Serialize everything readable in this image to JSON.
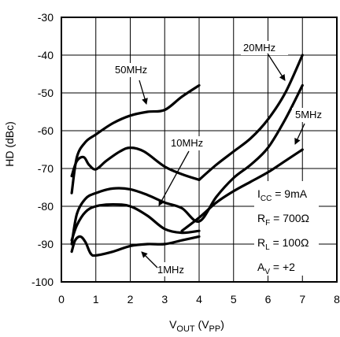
{
  "chart_data": {
    "type": "line",
    "title": "",
    "xlabel": {
      "main": "V",
      "sub1": "OUT",
      "mid": " (V",
      "sub2": "PP",
      "end": ")"
    },
    "ylabel": "HD (dBc)",
    "xlim": [
      0,
      8
    ],
    "ylim": [
      -100,
      -30
    ],
    "x_ticks": [
      0,
      1,
      2,
      3,
      4,
      5,
      6,
      7,
      8
    ],
    "y_ticks": [
      -100,
      -90,
      -80,
      -70,
      -60,
      -50,
      -40,
      -30
    ],
    "grid": true,
    "series": [
      {
        "name": "50MHz",
        "role": "upper",
        "x": [
          0.3,
          0.45,
          0.7,
          1.0,
          1.5,
          2.0,
          2.5,
          3.0,
          3.5,
          4.0
        ],
        "y": [
          -76.5,
          -67,
          -63,
          -61,
          -58,
          -56,
          -55,
          -54.5,
          -51,
          -48
        ]
      },
      {
        "name": "50MHz",
        "role": "lower",
        "x": [
          0.3,
          0.45,
          0.65,
          0.8,
          1.0,
          1.3,
          1.7,
          2.0,
          2.4,
          3.0,
          3.5,
          4.0
        ],
        "y": [
          -72,
          -68,
          -67,
          -69,
          -70.2,
          -68,
          -65.5,
          -64.5,
          -65.5,
          -69.5,
          -71.5,
          -73
        ]
      },
      {
        "name": "20MHz",
        "role": "upper",
        "x": [
          4.0,
          4.5,
          5.0,
          5.5,
          6.0,
          6.5,
          7.0
        ],
        "y": [
          -73,
          -69,
          -65.5,
          -62,
          -57,
          -50,
          -40
        ]
      },
      {
        "name": "20MHz",
        "role": "lower",
        "x": [
          0.3,
          0.45,
          0.7,
          1.0,
          1.5,
          2.0,
          2.5,
          3.0,
          3.5,
          4.0,
          4.5,
          5.0,
          5.5,
          6.0,
          6.5,
          7.0
        ],
        "y": [
          -90,
          -82,
          -78,
          -76.5,
          -75.3,
          -75.5,
          -77,
          -79,
          -80.5,
          -84,
          -77.5,
          -72.5,
          -69,
          -64.5,
          -57,
          -48
        ]
      },
      {
        "name": "10MHz",
        "role": "lower",
        "x": [
          0.3,
          0.45,
          0.7,
          1.0,
          1.5,
          2.0,
          2.5,
          3.0,
          3.5,
          4.0
        ],
        "y": [
          -89,
          -85,
          -81.5,
          -80,
          -79.5,
          -80,
          -82.5,
          -86,
          -87,
          -86.5
        ]
      },
      {
        "name": "5MHz",
        "x": [
          3.5,
          4.0,
          4.5,
          5.0,
          5.5,
          6.0,
          6.5,
          7.0
        ],
        "y": [
          -86.5,
          -83,
          -79,
          -76,
          -73.5,
          -71,
          -68,
          -65
        ]
      },
      {
        "name": "1MHz",
        "x": [
          0.3,
          0.4,
          0.55,
          0.7,
          0.85,
          1.0,
          1.5,
          2.0,
          2.5,
          3.0,
          3.5,
          4.0
        ],
        "y": [
          -92,
          -89,
          -88,
          -89.5,
          -92.5,
          -93,
          -92,
          -90.5,
          -90,
          -90,
          -89,
          -88
        ]
      }
    ],
    "annotations": [
      {
        "label": "50MHz"
      },
      {
        "label": "20MHz"
      },
      {
        "label": "10MHz"
      },
      {
        "label": "5MHz"
      },
      {
        "label": "1MHz"
      }
    ],
    "conditions": [
      {
        "main": "I",
        "sub": "CC",
        "rest": " = 9mA"
      },
      {
        "main": "R",
        "sub": "F",
        "rest": " = 700Ω"
      },
      {
        "main": "R",
        "sub": "L",
        "rest": " = 100Ω"
      },
      {
        "main": "A",
        "sub": "V",
        "rest": " = +2"
      }
    ]
  }
}
